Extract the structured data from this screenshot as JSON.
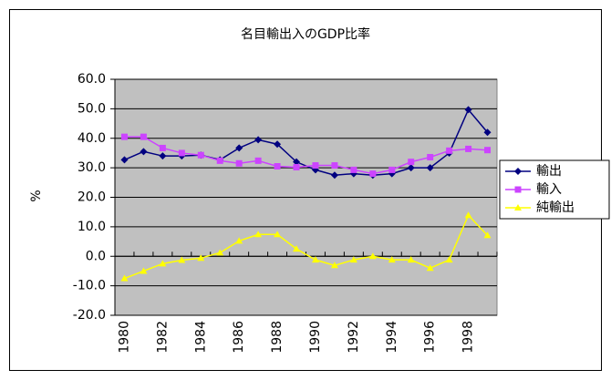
{
  "chart_data": {
    "type": "line",
    "title": "名目輸出入のGDP比率",
    "y_label": "%",
    "categories": [
      "1980",
      null,
      "1982",
      null,
      "1984",
      null,
      "1986",
      null,
      "1988",
      null,
      "1990",
      null,
      "1992",
      null,
      "1994",
      null,
      "1996",
      null,
      "1998",
      null
    ],
    "series": [
      {
        "name": "輸出",
        "color": "#000080",
        "marker": "diamond",
        "values": [
          32.7,
          35.5,
          34,
          34,
          34.3,
          32.7,
          36.7,
          39.5,
          38,
          32,
          29.3,
          27.5,
          28,
          27.5,
          28,
          30,
          30,
          35,
          49.7,
          42
        ]
      },
      {
        "name": "輸入",
        "color": "#cc44ff",
        "marker": "square",
        "values": [
          40.5,
          40.5,
          36.7,
          35,
          34.3,
          32.4,
          31.5,
          32.4,
          30.5,
          30.2,
          30.8,
          30.8,
          29.3,
          28,
          29.3,
          32,
          33.6,
          35.8,
          36.4,
          36
        ]
      },
      {
        "name": "純輸出",
        "color": "#ffff00",
        "marker": "triangle",
        "values": [
          -7.5,
          -5,
          -2.5,
          -1.3,
          -0.6,
          1.2,
          5.2,
          7.4,
          7.4,
          2.5,
          -1.2,
          -3.1,
          -1.2,
          0,
          -1.2,
          -1.2,
          -4,
          -1.2,
          13.9,
          7.1
        ]
      }
    ],
    "ylim": [
      -20,
      60
    ],
    "yticks": [
      {
        "value": -20,
        "label": "-20.0"
      },
      {
        "value": -10,
        "label": "-10.0"
      },
      {
        "value": 0,
        "label": "0.0"
      },
      {
        "value": 10,
        "label": "10.0"
      },
      {
        "value": 20,
        "label": "20.0"
      },
      {
        "value": 30,
        "label": "30.0"
      },
      {
        "value": 40,
        "label": "40.0"
      },
      {
        "value": 50,
        "label": "50.0"
      },
      {
        "value": 60,
        "label": "60.0"
      }
    ],
    "grid": true,
    "plot_background": "#c0c0c0",
    "legend": "right"
  }
}
